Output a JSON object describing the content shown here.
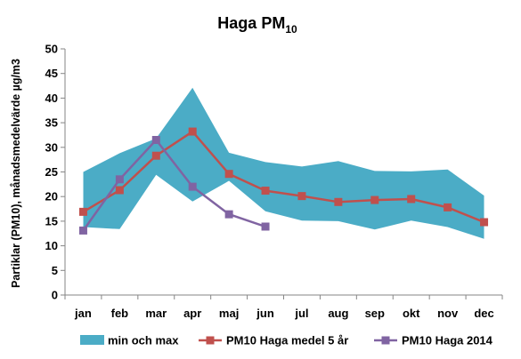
{
  "chart_data": {
    "type": "line",
    "title": "Haga PM",
    "title_subscript": "10",
    "xlabel": "",
    "ylabel": "Partiklar (PM10), månadsmedelvärde µg/m3",
    "ylim": [
      0,
      50
    ],
    "yticks": [
      0,
      5,
      10,
      15,
      20,
      25,
      30,
      35,
      40,
      45,
      50
    ],
    "grid": false,
    "legend_position": "bottom",
    "categories": [
      "jan",
      "feb",
      "mar",
      "apr",
      "maj",
      "jun",
      "jul",
      "aug",
      "sep",
      "okt",
      "nov",
      "dec"
    ],
    "band": {
      "name": "min och max",
      "type": "area",
      "color": "#4bacc6",
      "min": [
        13.8,
        13.4,
        24.4,
        19.0,
        23.2,
        17.0,
        15.1,
        15.0,
        13.3,
        15.1,
        13.8,
        11.4
      ],
      "max": [
        25.0,
        28.8,
        31.8,
        42.1,
        28.9,
        27.0,
        26.1,
        27.2,
        25.2,
        25.1,
        25.5,
        20.2
      ]
    },
    "series": [
      {
        "name": "PM10 Haga medel 5 år",
        "color": "#c0504d",
        "values": [
          16.9,
          21.3,
          28.3,
          33.2,
          24.6,
          21.2,
          20.1,
          18.9,
          19.3,
          19.5,
          17.8,
          14.8
        ]
      },
      {
        "name": "PM10 Haga 2014",
        "color": "#8064a2",
        "values": [
          13.1,
          23.5,
          31.5,
          22.0,
          16.4,
          13.9,
          null,
          null,
          null,
          null,
          null,
          null
        ]
      }
    ]
  }
}
